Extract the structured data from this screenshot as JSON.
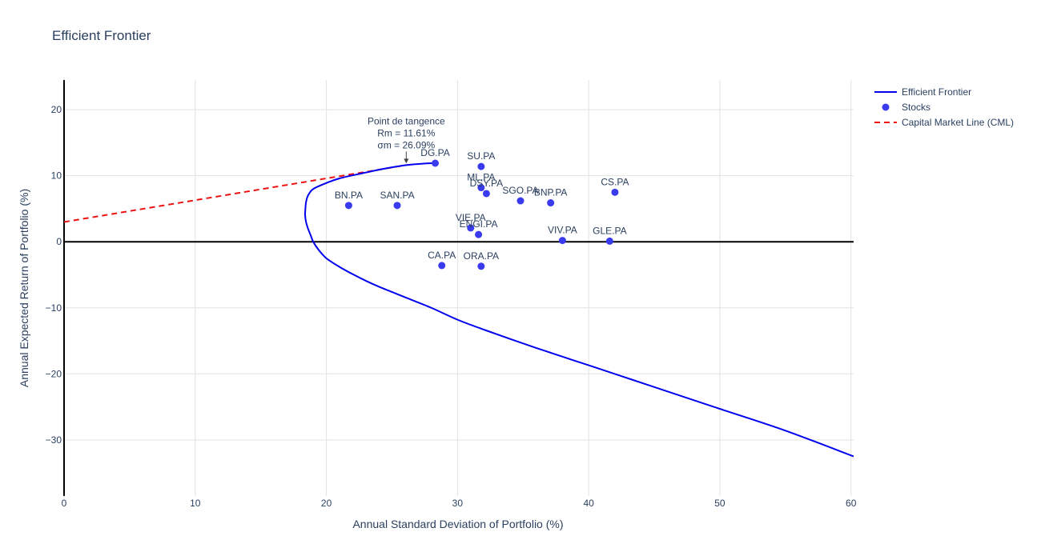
{
  "chart_data": {
    "type": "scatter",
    "title": "Efficient Frontier",
    "xlabel": "Annual Standard Deviation of Portfolio (%)",
    "ylabel": "Annual Expected Return of Portfolio (%)",
    "xlim": [
      0,
      60.2
    ],
    "ylim": [
      -38.5,
      24.5
    ],
    "xticks": [
      0,
      10,
      20,
      30,
      40,
      50,
      60
    ],
    "yticks": [
      -30,
      -20,
      -10,
      0,
      10,
      20
    ],
    "ytick_labels": [
      "−30",
      "−20",
      "−10",
      "0",
      "10",
      "20"
    ],
    "grid": true,
    "legend_position": "top-right",
    "colors": {
      "frontier": "#0000ee",
      "stocks": "#3a3aee",
      "cml": "#ee1111",
      "grid": "#e2e2e2",
      "zero_line": "#000000"
    },
    "series": [
      {
        "name": "Efficient Frontier",
        "kind": "line",
        "points": [
          [
            28.3,
            11.9
          ],
          [
            27.5,
            11.85
          ],
          [
            26.09,
            11.61
          ],
          [
            24.5,
            11.1
          ],
          [
            22.8,
            10.4
          ],
          [
            21.0,
            9.6
          ],
          [
            20.0,
            8.9
          ],
          [
            19.0,
            8.0
          ],
          [
            18.6,
            7.0
          ],
          [
            18.45,
            6.0
          ],
          [
            18.4,
            5.0
          ],
          [
            18.38,
            4.0
          ],
          [
            18.45,
            3.0
          ],
          [
            18.6,
            2.0
          ],
          [
            18.8,
            1.0
          ],
          [
            19.0,
            0.0
          ],
          [
            19.4,
            -1.2
          ],
          [
            20.0,
            -2.5
          ],
          [
            21.0,
            -3.8
          ],
          [
            22.0,
            -4.9
          ],
          [
            23.0,
            -5.9
          ],
          [
            24.0,
            -6.8
          ],
          [
            25.0,
            -7.6
          ],
          [
            26.0,
            -8.4
          ],
          [
            28.0,
            -10.0
          ],
          [
            30.0,
            -11.8
          ],
          [
            32.0,
            -13.3
          ],
          [
            35.0,
            -15.4
          ],
          [
            38.0,
            -17.4
          ],
          [
            40.0,
            -18.7
          ],
          [
            45.0,
            -22.0
          ],
          [
            50.0,
            -25.3
          ],
          [
            55.0,
            -28.6
          ],
          [
            60.2,
            -32.5
          ]
        ]
      },
      {
        "name": "Stocks",
        "kind": "markers",
        "points": [
          {
            "label": "DG.PA",
            "x": 28.3,
            "y": 11.9
          },
          {
            "label": "SU.PA",
            "x": 31.8,
            "y": 11.4
          },
          {
            "label": "ML.PA",
            "x": 31.8,
            "y": 8.2
          },
          {
            "label": "DSY.PA",
            "x": 32.2,
            "y": 7.3
          },
          {
            "label": "SGO.PA",
            "x": 34.8,
            "y": 6.2
          },
          {
            "label": "BNP.PA",
            "x": 37.1,
            "y": 5.9
          },
          {
            "label": "CS.PA",
            "x": 42.0,
            "y": 7.5
          },
          {
            "label": "BN.PA",
            "x": 21.7,
            "y": 5.5
          },
          {
            "label": "SAN.PA",
            "x": 25.4,
            "y": 5.5
          },
          {
            "label": "VIE.PA",
            "x": 31.0,
            "y": 2.1
          },
          {
            "label": "ENGI.PA",
            "x": 31.6,
            "y": 1.1
          },
          {
            "label": "VIV.PA",
            "x": 38.0,
            "y": 0.2
          },
          {
            "label": "GLE.PA",
            "x": 41.6,
            "y": 0.1
          },
          {
            "label": "CA.PA",
            "x": 28.8,
            "y": -3.6
          },
          {
            "label": "ORA.PA",
            "x": 31.8,
            "y": -3.7
          }
        ]
      },
      {
        "name": "Capital Market Line (CML)",
        "kind": "dashed-line",
        "points": [
          [
            0,
            3.0
          ],
          [
            26.09,
            11.61
          ]
        ]
      }
    ],
    "annotation": {
      "x": 26.09,
      "y": 11.61,
      "lines": [
        "Point de tangence",
        "Rm = 11.61%",
        "σm = 26.09%"
      ]
    }
  }
}
